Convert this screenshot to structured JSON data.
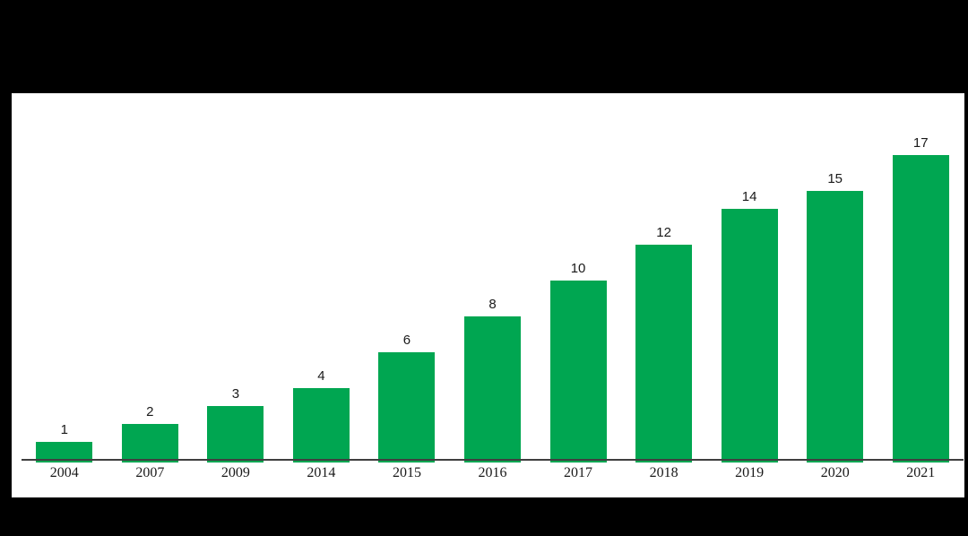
{
  "window": {
    "background_color": "#000000",
    "panel_background_color": "#ffffff"
  },
  "chart_data": {
    "type": "bar",
    "title": "",
    "xlabel": "",
    "ylabel": "",
    "categories": [
      "2004",
      "2007",
      "2009",
      "2014",
      "2015",
      "2016",
      "2017",
      "2018",
      "2019",
      "2020",
      "2021"
    ],
    "values": [
      1,
      2,
      3,
      4,
      6,
      8,
      10,
      12,
      14,
      15,
      17
    ],
    "value_labels": [
      "1",
      "2",
      "3",
      "4",
      "6",
      "8",
      "10",
      "12",
      "14",
      "15",
      "17"
    ],
    "ylim": [
      0,
      18
    ],
    "grid": false,
    "legend": false,
    "y_axis_shown": false,
    "x_axis_line_shown": true,
    "colors": {
      "bar": "#00a651",
      "axis_line": "#3f3f3f",
      "value_label_text": "#1a1a1a",
      "tick_label_text": "#1a1a1a"
    }
  }
}
